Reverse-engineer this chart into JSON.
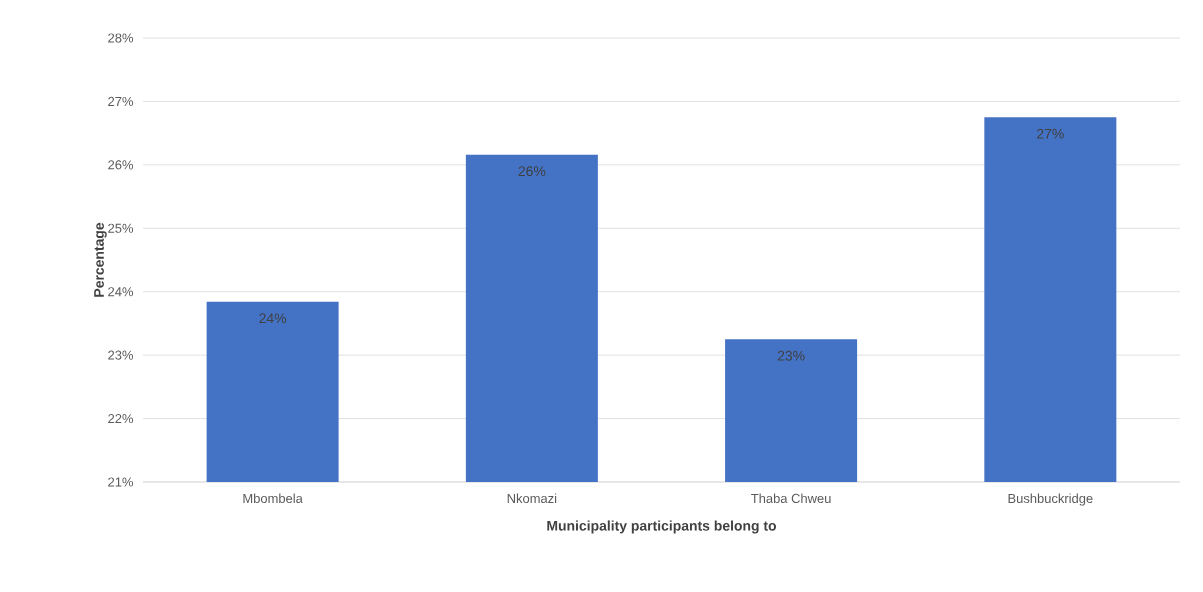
{
  "chart_data": {
    "type": "bar",
    "xlabel": "Municipality participants belong to",
    "ylabel": "Percentage",
    "categories": [
      "Mbombela",
      "Nkomazi",
      "Thaba Chweu",
      "Bushbuckridge"
    ],
    "values": [
      23.84,
      26.16,
      23.25,
      26.75
    ],
    "color": "#4472c4",
    "value_labels": [
      "24%",
      "26%",
      "23%",
      "27%"
    ],
    "ylim": [
      21,
      28
    ],
    "yticks": [
      {
        "value": 21,
        "label": "21%"
      },
      {
        "value": 22,
        "label": "22%"
      },
      {
        "value": 23,
        "label": "23%"
      },
      {
        "value": 24,
        "label": "24%"
      },
      {
        "value": 25,
        "label": "25%"
      },
      {
        "value": 26,
        "label": "26%"
      },
      {
        "value": 27,
        "label": "27%"
      },
      {
        "value": 28,
        "label": "28%"
      }
    ],
    "grid": "y"
  }
}
